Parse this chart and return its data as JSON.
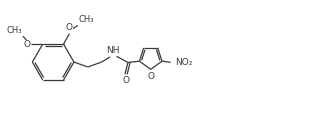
{
  "background": "#ffffff",
  "line_color": "#3a3a3a",
  "line_width": 0.9,
  "fig_width": 3.22,
  "fig_height": 1.32,
  "dpi": 100,
  "font_size": 6.5,
  "font_size_sm": 6.0,
  "xlim": [
    0,
    16.0
  ],
  "ylim": [
    0,
    6.6
  ]
}
